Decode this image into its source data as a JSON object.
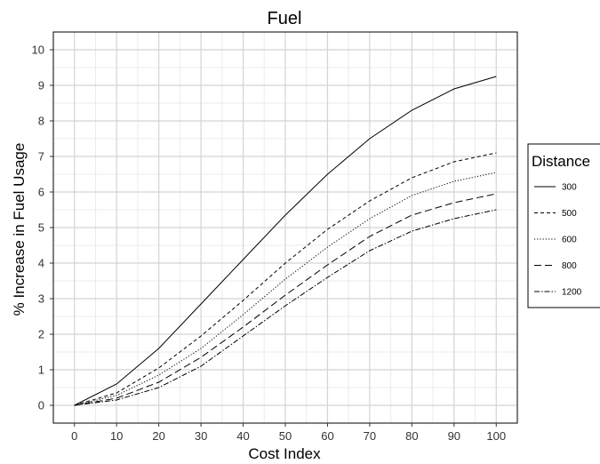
{
  "chart_data": {
    "type": "line",
    "title": "Fuel",
    "xlabel": "Cost Index",
    "ylabel": "% Increase in Fuel Usage",
    "xlim": [
      -5,
      105
    ],
    "ylim": [
      -0.5,
      10.5
    ],
    "x_ticks": [
      0,
      10,
      20,
      30,
      40,
      50,
      60,
      70,
      80,
      90,
      100
    ],
    "y_ticks": [
      0,
      1,
      2,
      3,
      4,
      5,
      6,
      7,
      8,
      9,
      10
    ],
    "minor_grid_x_step": 5,
    "minor_grid_y_step": 0.5,
    "grid": true,
    "legend": {
      "title": "Distance",
      "position": "right"
    },
    "x": [
      0,
      10,
      20,
      30,
      40,
      50,
      60,
      70,
      80,
      90,
      100
    ],
    "series": [
      {
        "name": "300",
        "dash": "",
        "values": [
          0,
          0.6,
          1.6,
          2.85,
          4.1,
          5.35,
          6.5,
          7.5,
          8.3,
          8.9,
          9.25
        ]
      },
      {
        "name": "500",
        "dash": "4,3",
        "values": [
          0,
          0.35,
          1.05,
          1.95,
          2.95,
          4.0,
          4.95,
          5.75,
          6.4,
          6.85,
          7.1
        ]
      },
      {
        "name": "600",
        "dash": "1.2,2",
        "values": [
          0,
          0.28,
          0.85,
          1.6,
          2.55,
          3.55,
          4.45,
          5.25,
          5.9,
          6.3,
          6.55
        ]
      },
      {
        "name": "800",
        "dash": "8,4",
        "values": [
          0,
          0.2,
          0.65,
          1.35,
          2.2,
          3.1,
          3.95,
          4.75,
          5.35,
          5.7,
          5.95
        ]
      },
      {
        "name": "1200",
        "dash": "6,2,1.5,2",
        "values": [
          0,
          0.15,
          0.5,
          1.1,
          1.95,
          2.8,
          3.6,
          4.35,
          4.9,
          5.25,
          5.5
        ]
      }
    ]
  }
}
